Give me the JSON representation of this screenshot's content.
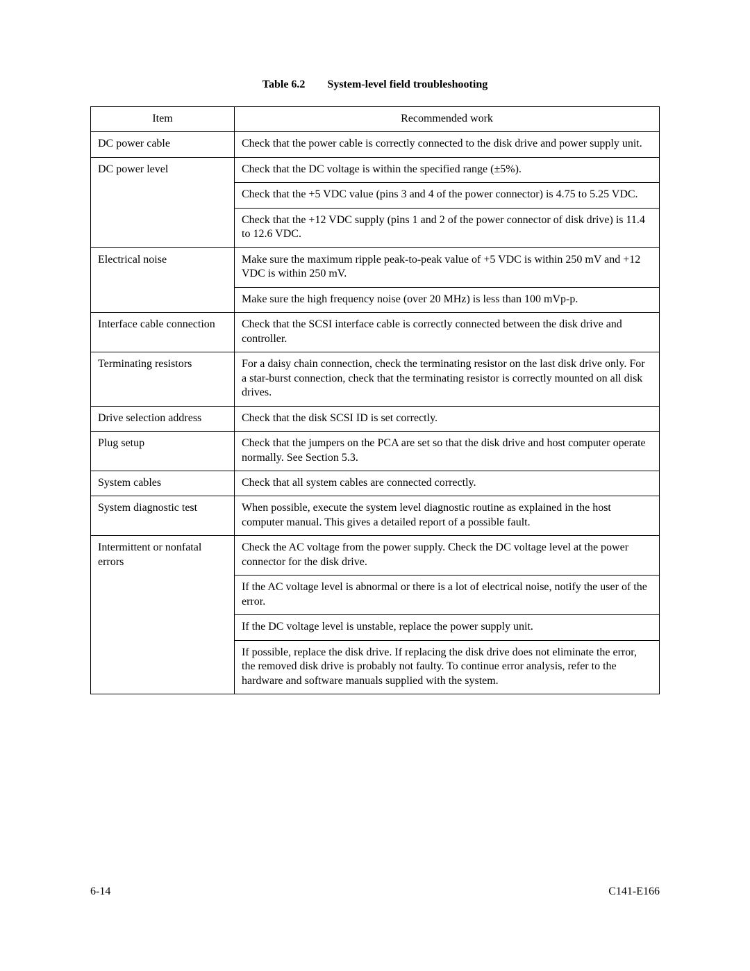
{
  "caption": {
    "number": "Table 6.2",
    "title": "System-level field troubleshooting"
  },
  "headers": {
    "item": "Item",
    "work": "Recommended work"
  },
  "rows": {
    "dc_power_cable": {
      "item": "DC power cable",
      "work": "Check that the power cable is correctly connected to the disk drive and power supply unit."
    },
    "dc_power_level": {
      "item": "DC power level",
      "work1": "Check that the DC voltage is within the specified range (±5%).",
      "work2": "Check that the +5 VDC value (pins 3 and 4 of the power connector) is 4.75 to 5.25 VDC.",
      "work3": "Check that the +12 VDC supply (pins 1 and 2 of the power connector of disk drive) is 11.4 to 12.6 VDC."
    },
    "electrical_noise": {
      "item": "Electrical noise",
      "work1": "Make sure the maximum ripple peak-to-peak value of +5 VDC is within 250 mV and +12 VDC is within 250 mV.",
      "work2": "Make sure the high frequency noise (over 20 MHz) is less than 100 mVp-p."
    },
    "interface_cable": {
      "item": "Interface cable connection",
      "work": "Check that the SCSI interface cable is correctly connected between the disk drive and controller."
    },
    "terminating_resistors": {
      "item": "Terminating resistors",
      "work": "For a daisy chain connection, check the terminating resistor on the last disk drive only.  For a star-burst connection, check that the terminating resistor is correctly mounted on all disk drives."
    },
    "drive_selection": {
      "item": "Drive selection address",
      "work": "Check that the disk SCSI ID is set correctly."
    },
    "plug_setup": {
      "item": "Plug setup",
      "work": "Check that the jumpers on the PCA are set so that the disk drive and host computer operate normally.  See Section 5.3."
    },
    "system_cables": {
      "item": "System cables",
      "work": "Check that all system cables are connected correctly."
    },
    "system_diag": {
      "item": "System diagnostic test",
      "work": "When possible, execute the system level diagnostic routine as explained in the host computer manual.  This gives a detailed report of a possible fault."
    },
    "intermittent": {
      "item": "Intermittent or nonfatal errors",
      "work1": "Check the AC voltage from the power supply.  Check the DC voltage level at the power connector for the disk drive.",
      "work2": "If the AC voltage level is abnormal or there is a lot of electrical noise, notify the user of the error.",
      "work3": "If the DC voltage level is unstable, replace the power supply unit.",
      "work4": "If possible, replace the disk drive.  If replacing the disk drive does not eliminate the error, the removed disk drive is probably not faulty.  To continue error analysis, refer to the hardware and software manuals supplied with the system."
    }
  },
  "footer": {
    "left": "6-14",
    "right": "C141-E166"
  }
}
